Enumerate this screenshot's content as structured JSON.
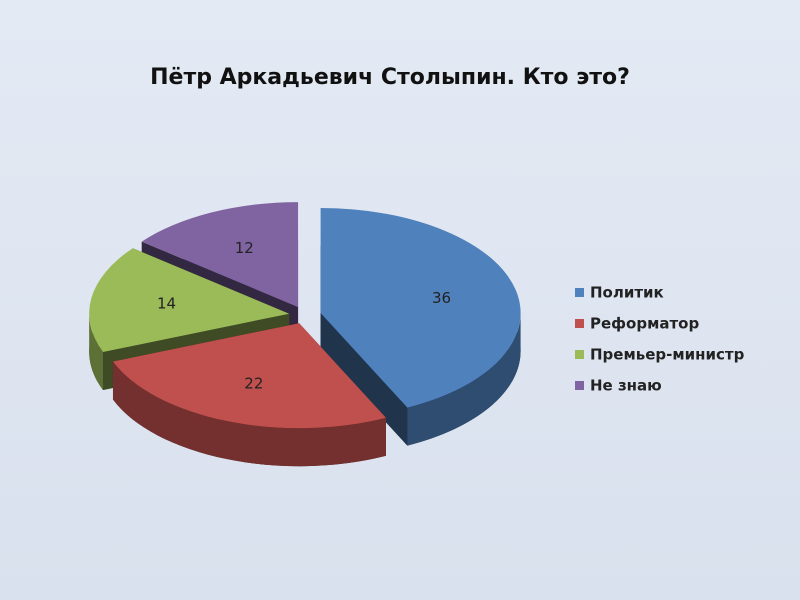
{
  "chart_data": {
    "type": "pie",
    "title": "Пётр Аркадьевич Столыпин. Кто это?",
    "categories": [
      "Политик",
      "Реформатор",
      "Премьер-министр",
      "Не знаю"
    ],
    "values": [
      36,
      22,
      14,
      12
    ],
    "colors": [
      "#4f81bd",
      "#c0504d",
      "#9bbb59",
      "#8064a2"
    ],
    "legend": "right"
  }
}
